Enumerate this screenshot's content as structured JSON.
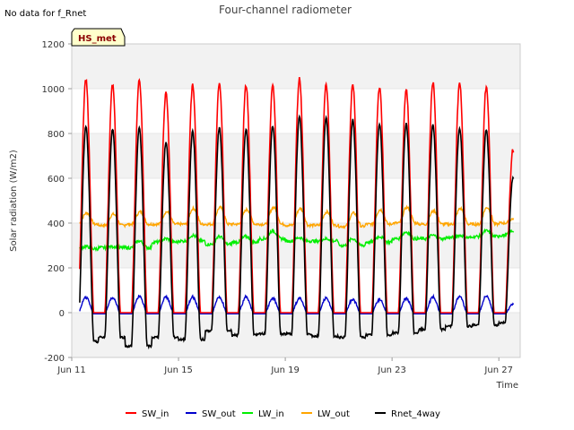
{
  "note": "No data for f_Rnet",
  "badge": "HS_met",
  "chart_data": {
    "type": "line",
    "title": "Four-channel radiometer",
    "xlabel": "Time",
    "ylabel": "Solar radiation (W/m2)",
    "xlim": [
      0,
      16.8
    ],
    "ylim": [
      -200,
      1200
    ],
    "yticks": [
      -200,
      0,
      200,
      400,
      600,
      800,
      1000,
      1200
    ],
    "xticks": [
      {
        "value": 0,
        "label": "Jun 11"
      },
      {
        "value": 4,
        "label": "Jun 15"
      },
      {
        "value": 8,
        "label": "Jun 19"
      },
      {
        "value": 12,
        "label": "Jun 23"
      },
      {
        "value": 16,
        "label": "Jun 27"
      }
    ],
    "grid": "horizontal bands",
    "legend": "bottom",
    "days": [
      "Jun 11",
      "Jun 12",
      "Jun 13",
      "Jun 14",
      "Jun 15",
      "Jun 16",
      "Jun 17",
      "Jun 18",
      "Jun 19",
      "Jun 20",
      "Jun 21",
      "Jun 22",
      "Jun 23",
      "Jun 24",
      "Jun 25",
      "Jun 26",
      "Jun 27"
    ],
    "series": [
      {
        "name": "SW_in",
        "color": "#ff0000",
        "daily_peak": [
          1040,
          1020,
          1040,
          980,
          1015,
          1025,
          1015,
          1010,
          1045,
          1020,
          1020,
          1010,
          995,
          1030,
          1030,
          1010,
          730
        ],
        "night": 0
      },
      {
        "name": "SW_out",
        "color": "#0000cc",
        "daily_peak": [
          75,
          75,
          80,
          75,
          75,
          75,
          75,
          70,
          70,
          70,
          65,
          65,
          70,
          75,
          80,
          80,
          40
        ],
        "night": -5
      },
      {
        "name": "LW_in",
        "color": "#00ee00",
        "daily_peak": [
          295,
          295,
          320,
          330,
          345,
          340,
          340,
          365,
          335,
          330,
          330,
          340,
          360,
          345,
          345,
          365,
          365
        ],
        "daily_low": [
          285,
          290,
          290,
          315,
          320,
          305,
          315,
          330,
          320,
          320,
          300,
          315,
          330,
          330,
          335,
          340,
          345
        ]
      },
      {
        "name": "LW_out",
        "color": "#ffa500",
        "daily_peak": [
          445,
          440,
          450,
          450,
          465,
          470,
          460,
          470,
          465,
          450,
          445,
          460,
          470,
          455,
          465,
          470,
          420
        ],
        "daily_low": [
          395,
          390,
          395,
          395,
          395,
          395,
          395,
          395,
          390,
          390,
          385,
          395,
          400,
          395,
          395,
          395,
          400
        ]
      },
      {
        "name": "Rnet_4way",
        "color": "#000000",
        "daily_peak": [
          830,
          820,
          825,
          760,
          810,
          825,
          820,
          835,
          875,
          870,
          860,
          845,
          845,
          840,
          825,
          815,
          600
        ],
        "night": [
          -130,
          -110,
          -150,
          -110,
          -120,
          -80,
          -100,
          -95,
          -95,
          -105,
          -110,
          -100,
          -90,
          -75,
          -60,
          -55,
          -45
        ]
      }
    ]
  }
}
